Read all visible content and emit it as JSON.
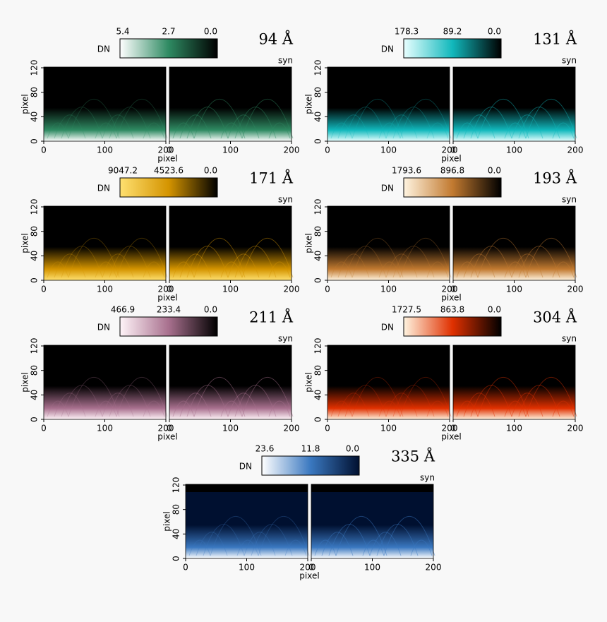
{
  "axes": {
    "x_label": "pixel",
    "y_label": "pixel",
    "xticks": [
      "0",
      "100",
      "200"
    ],
    "yticks": [
      "0",
      "40",
      "80",
      "120"
    ]
  },
  "panels": [
    {
      "wavelength": "94 Å",
      "colorbar_label": "DN",
      "colorbar_ticks": [
        "5.4",
        "2.7",
        "0.0"
      ],
      "inset": "syn",
      "cmap": [
        "#ffffff",
        "#2e8a62",
        "#000000"
      ]
    },
    {
      "wavelength": "131 Å",
      "colorbar_label": "DN",
      "colorbar_ticks": [
        "178.3",
        "89.2",
        "0.0"
      ],
      "inset": "syn",
      "cmap": [
        "#e8ffff",
        "#11b8bc",
        "#000000"
      ]
    },
    {
      "wavelength": "171 Å",
      "colorbar_label": "DN",
      "colorbar_ticks": [
        "9047.2",
        "4523.6",
        "0.0"
      ],
      "inset": "syn",
      "cmap": [
        "#ffe070",
        "#d49400",
        "#000000"
      ]
    },
    {
      "wavelength": "193 Å",
      "colorbar_label": "DN",
      "colorbar_ticks": [
        "1793.6",
        "896.8",
        "0.0"
      ],
      "inset": "syn",
      "cmap": [
        "#fff4e0",
        "#c27a30",
        "#000000"
      ]
    },
    {
      "wavelength": "211 Å",
      "colorbar_label": "DN",
      "colorbar_ticks": [
        "466.9",
        "233.4",
        "0.0"
      ],
      "inset": "syn",
      "cmap": [
        "#fff4f8",
        "#a8708e",
        "#000000"
      ]
    },
    {
      "wavelength": "304 Å",
      "colorbar_label": "DN",
      "colorbar_ticks": [
        "1727.5",
        "863.8",
        "0.0"
      ],
      "inset": "syn",
      "cmap": [
        "#fff4e0",
        "#e03000",
        "#000000"
      ]
    },
    {
      "wavelength": "335 Å",
      "colorbar_label": "DN",
      "colorbar_ticks": [
        "23.6",
        "11.8",
        "0.0"
      ],
      "inset": "syn",
      "cmap": [
        "#ffffff",
        "#3a78c0",
        "#001030"
      ]
    }
  ]
}
